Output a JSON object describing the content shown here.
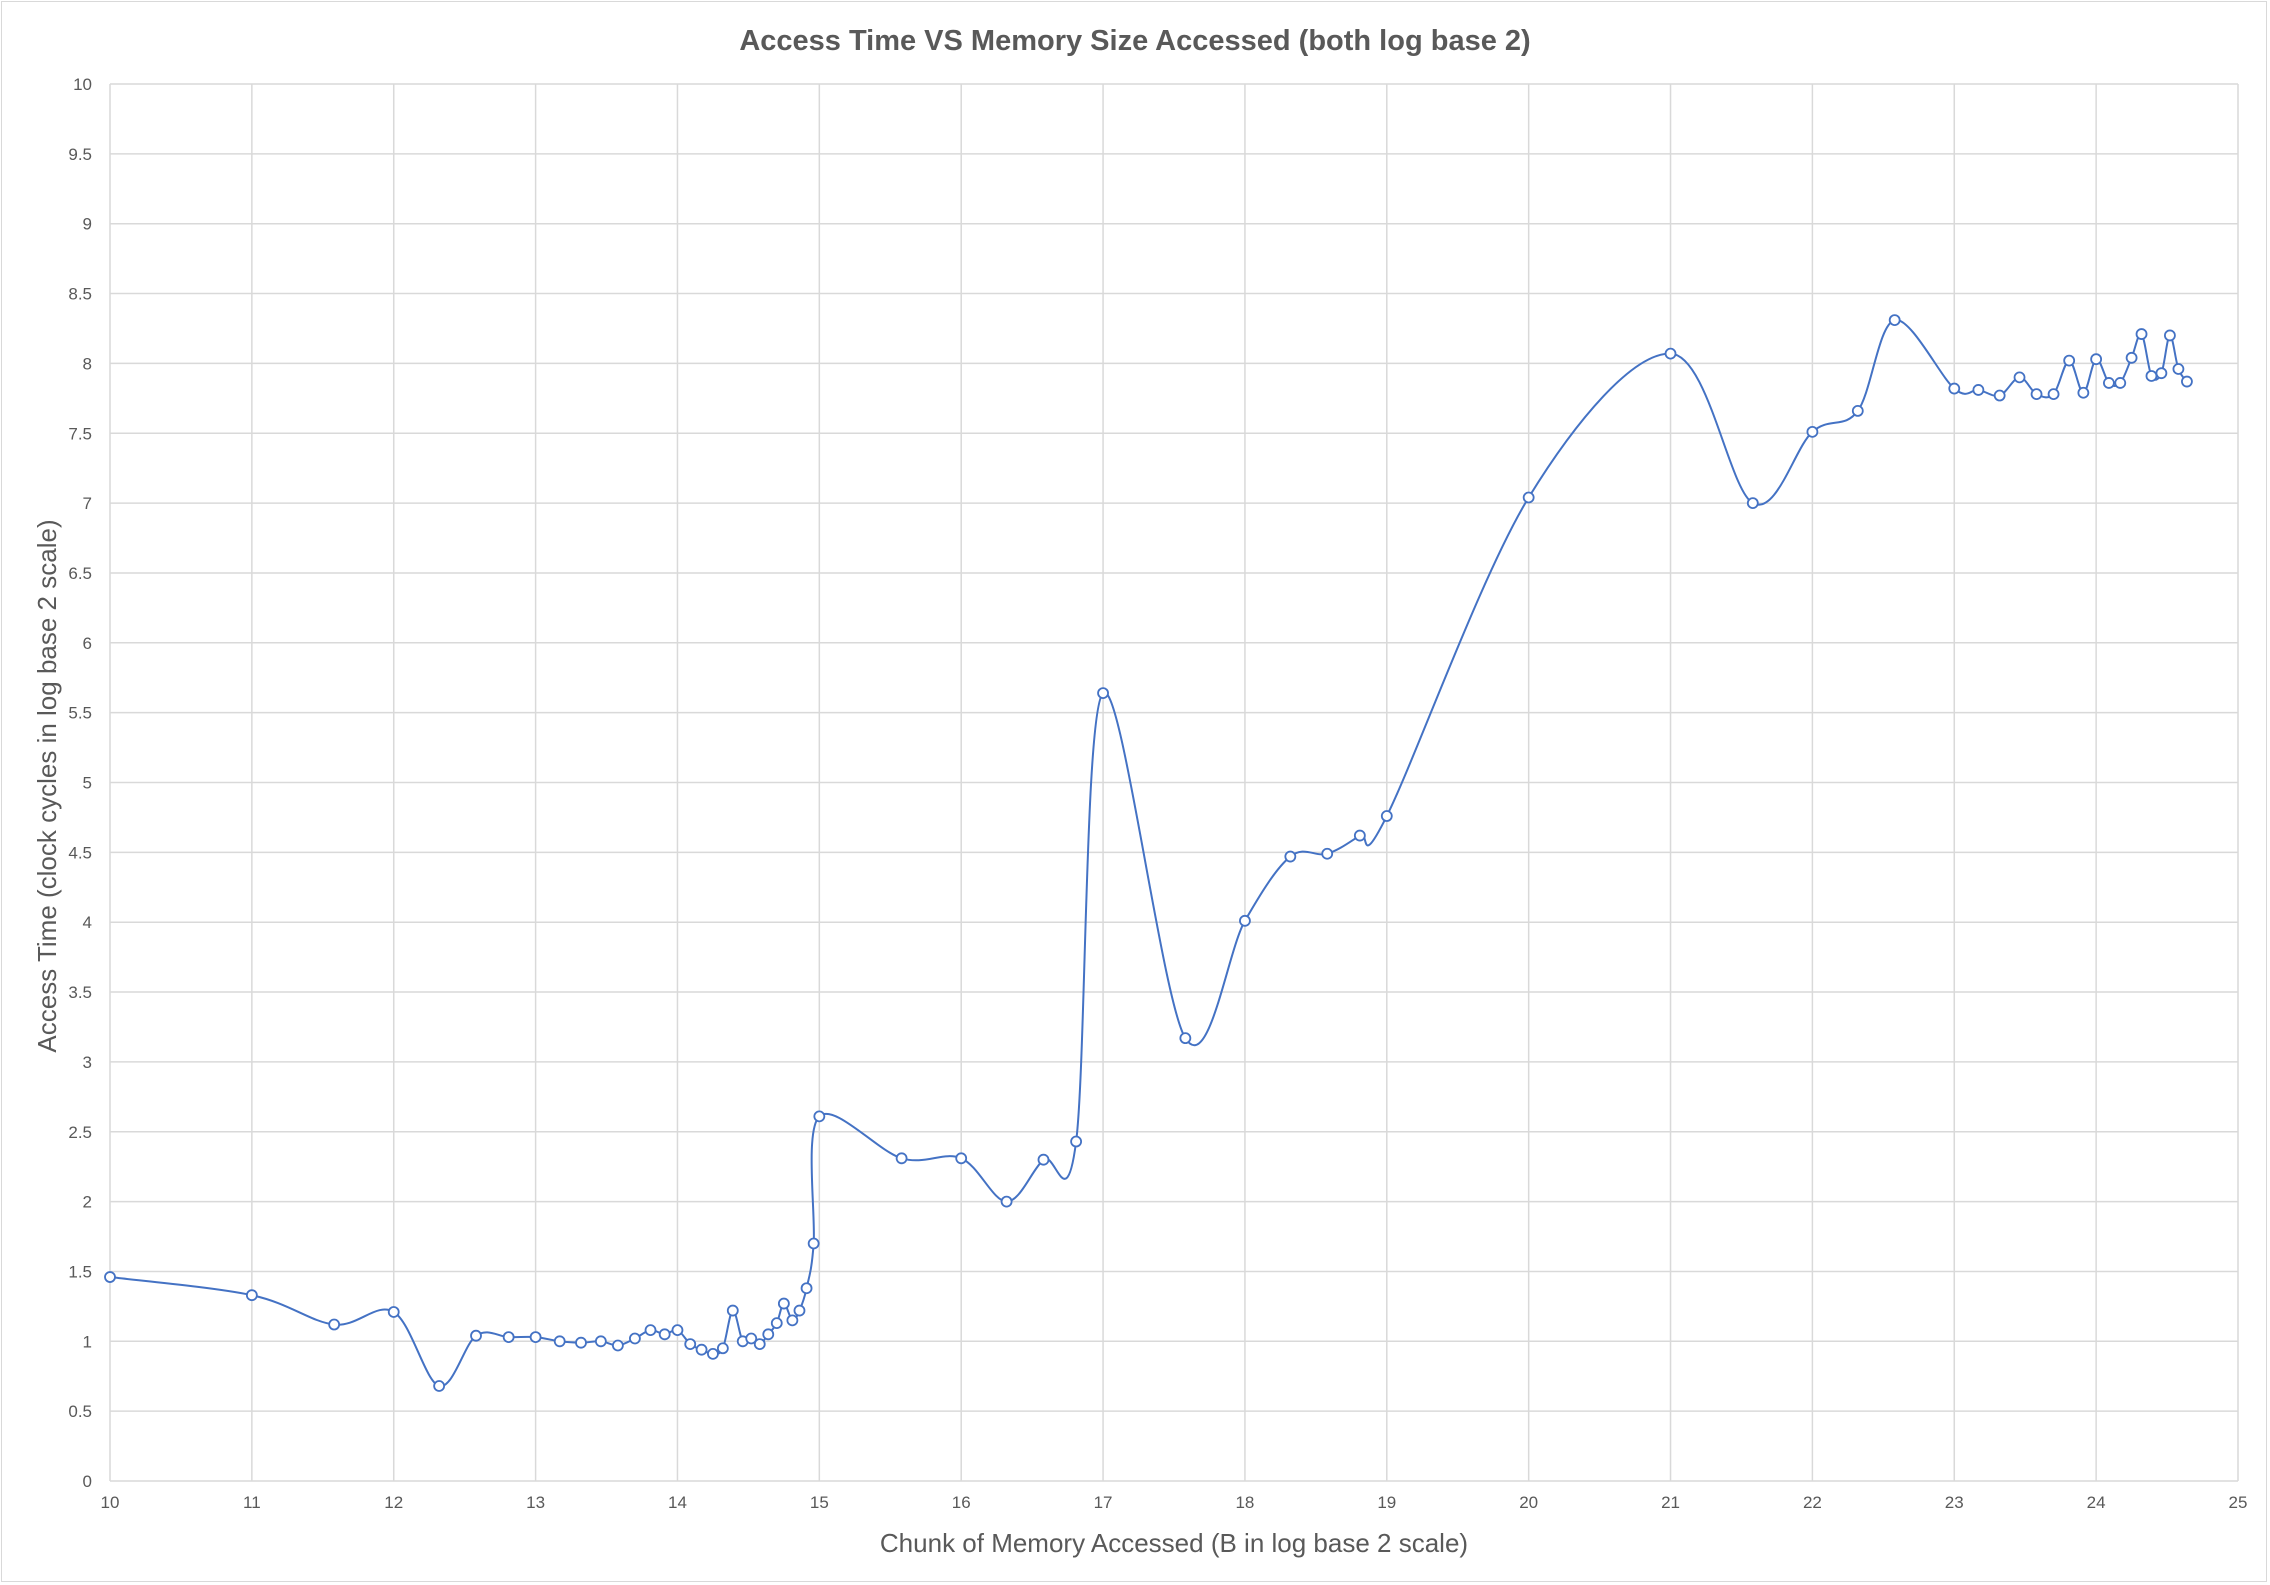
{
  "chart_data": {
    "type": "line",
    "title": "Access Time VS Memory Size Accessed (both log base 2)",
    "xlabel": "Chunk of Memory Accessed  (B in log base 2 scale)",
    "ylabel": "Access Time (clock cycles in log base 2 scale)",
    "xlim": [
      10,
      25
    ],
    "ylim": [
      0,
      10
    ],
    "x_ticks": [
      "10",
      "11",
      "12",
      "13",
      "14",
      "15",
      "16",
      "17",
      "18",
      "19",
      "20",
      "21",
      "22",
      "23",
      "24",
      "25"
    ],
    "y_ticks": [
      "0",
      "0.5",
      "1",
      "1.5",
      "2",
      "2.5",
      "3",
      "3.5",
      "4",
      "4.5",
      "5",
      "5.5",
      "6",
      "6.5",
      "7",
      "7.5",
      "8",
      "8.5",
      "9",
      "9.5",
      "10"
    ],
    "grid": true,
    "legend": "none",
    "smooth": true,
    "colors": {
      "line": "#4472c4",
      "grid": "#d9d9d9",
      "text": "#595959"
    },
    "series": [
      {
        "points": [
          [
            10.0,
            1.46
          ],
          [
            11.0,
            1.33
          ],
          [
            11.58,
            1.12
          ],
          [
            12.0,
            1.21
          ],
          [
            12.32,
            0.68
          ],
          [
            12.58,
            1.04
          ],
          [
            12.81,
            1.03
          ],
          [
            13.0,
            1.03
          ],
          [
            13.17,
            1.0
          ],
          [
            13.32,
            0.99
          ],
          [
            13.46,
            1.0
          ],
          [
            13.58,
            0.97
          ],
          [
            13.7,
            1.02
          ],
          [
            13.81,
            1.08
          ],
          [
            13.91,
            1.05
          ],
          [
            14.0,
            1.08
          ],
          [
            14.09,
            0.98
          ],
          [
            14.17,
            0.94
          ],
          [
            14.25,
            0.91
          ],
          [
            14.32,
            0.95
          ],
          [
            14.39,
            1.22
          ],
          [
            14.46,
            1.0
          ],
          [
            14.52,
            1.02
          ],
          [
            14.58,
            0.98
          ],
          [
            14.64,
            1.05
          ],
          [
            14.7,
            1.13
          ],
          [
            14.75,
            1.27
          ],
          [
            14.81,
            1.15
          ],
          [
            14.86,
            1.22
          ],
          [
            14.91,
            1.38
          ],
          [
            14.96,
            1.7
          ],
          [
            15.0,
            2.61
          ],
          [
            15.58,
            2.31
          ],
          [
            16.0,
            2.31
          ],
          [
            16.32,
            2.0
          ],
          [
            16.58,
            2.3
          ],
          [
            16.81,
            2.43
          ],
          [
            17.0,
            5.64
          ],
          [
            17.58,
            3.17
          ],
          [
            18.0,
            4.01
          ],
          [
            18.32,
            4.47
          ],
          [
            18.58,
            4.49
          ],
          [
            18.81,
            4.62
          ],
          [
            19.0,
            4.76
          ],
          [
            20.0,
            7.04
          ],
          [
            21.0,
            8.07
          ],
          [
            21.58,
            7.0
          ],
          [
            22.0,
            7.51
          ],
          [
            22.32,
            7.66
          ],
          [
            22.58,
            8.31
          ],
          [
            23.0,
            7.82
          ],
          [
            23.17,
            7.81
          ],
          [
            23.32,
            7.77
          ],
          [
            23.46,
            7.9
          ],
          [
            23.58,
            7.78
          ],
          [
            23.7,
            7.78
          ],
          [
            23.81,
            8.02
          ],
          [
            23.91,
            7.79
          ],
          [
            24.0,
            8.03
          ],
          [
            24.09,
            7.86
          ],
          [
            24.17,
            7.86
          ],
          [
            24.25,
            8.04
          ],
          [
            24.32,
            8.21
          ],
          [
            24.39,
            7.91
          ],
          [
            24.46,
            7.93
          ],
          [
            24.52,
            8.2
          ],
          [
            24.58,
            7.96
          ],
          [
            24.64,
            7.87
          ]
        ]
      }
    ]
  }
}
